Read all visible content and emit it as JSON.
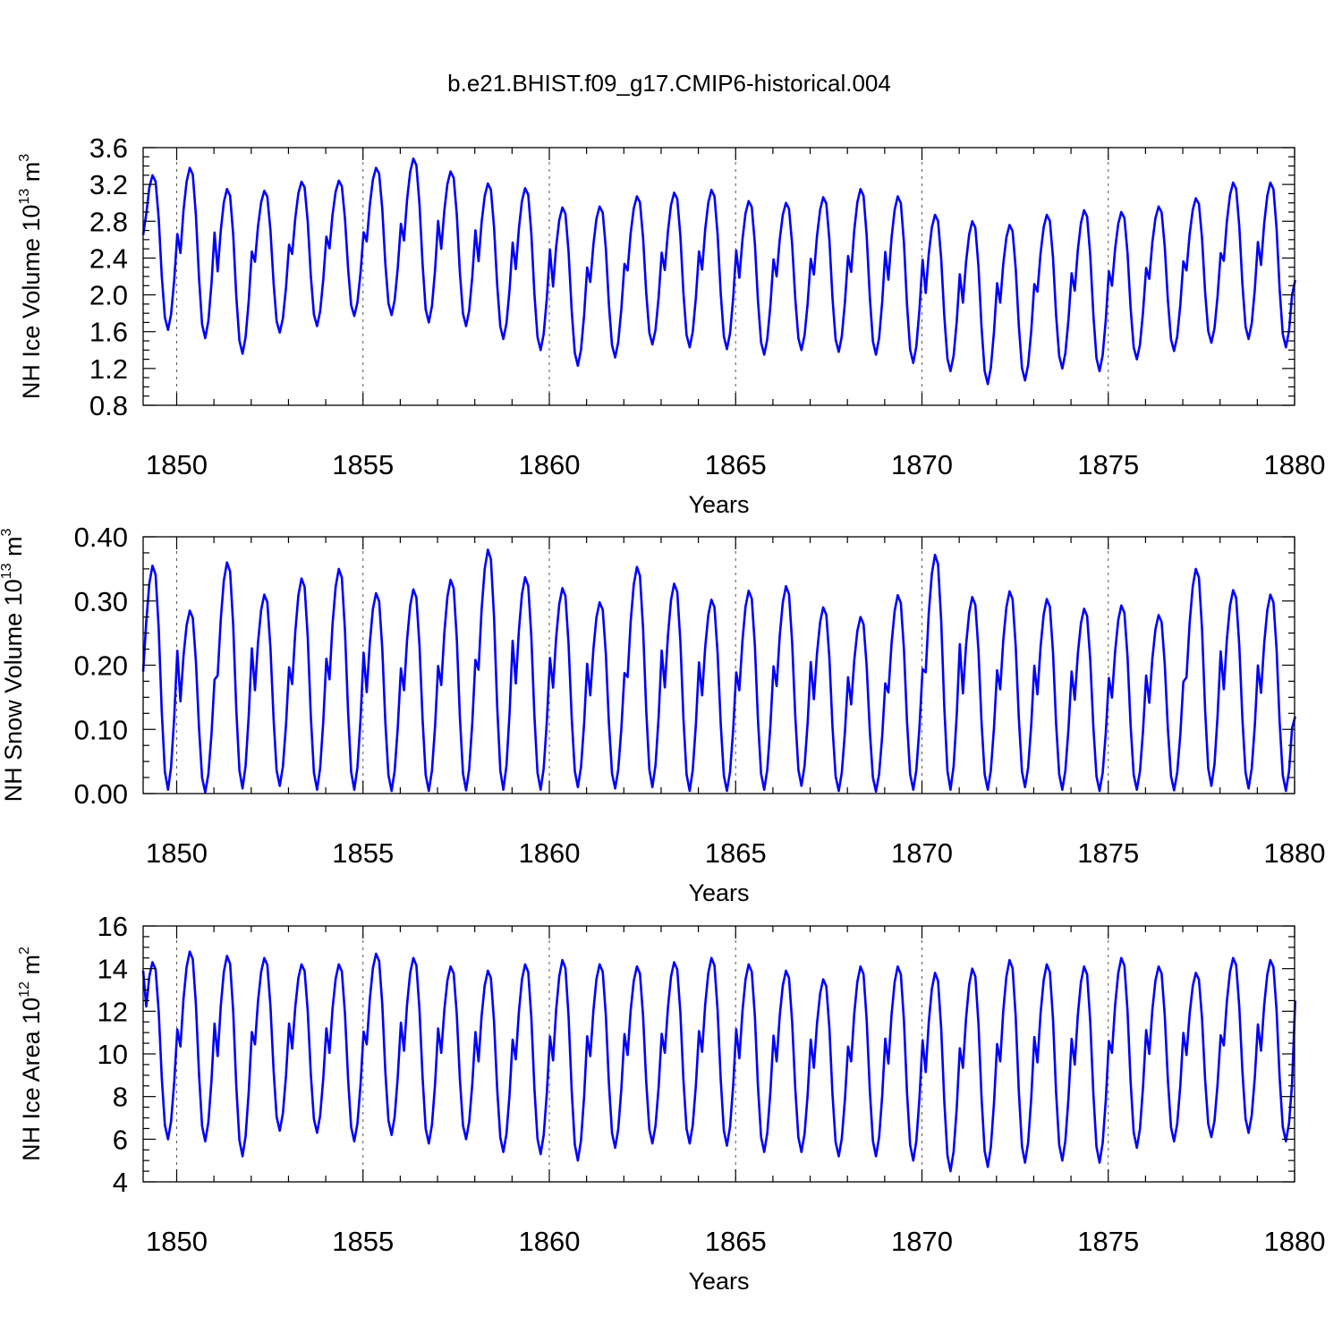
{
  "title": "b.e21.BHIST.f09_g17.CMIP6-historical.004",
  "line_color": "#0000ff",
  "chart_data": [
    {
      "type": "line",
      "xlabel": "Years",
      "ylabel": {
        "prefix": "NH Ice Volume 10",
        "exp": "13",
        "unit": " m",
        "unit_exp": "3"
      },
      "xlim": [
        1849.1,
        1880.0
      ],
      "ylim": [
        0.8,
        3.6
      ],
      "xticks": [
        1850,
        1855,
        1860,
        1865,
        1870,
        1875,
        1880
      ],
      "yticks": [
        0.8,
        1.2,
        1.6,
        2.0,
        2.4,
        2.8,
        3.2,
        3.6
      ],
      "ytick_labels": [
        "0.8",
        "1.2",
        "1.6",
        "2.0",
        "2.4",
        "2.8",
        "3.2",
        "3.6"
      ],
      "x_start": 1849.1,
      "x_step": 0.0833333,
      "annual_max": [
        3.3,
        3.38,
        3.15,
        3.13,
        3.23,
        3.24,
        3.38,
        3.48,
        3.34,
        3.21,
        3.16,
        2.95,
        2.96,
        3.07,
        3.11,
        3.14,
        3.02,
        3.0,
        3.06,
        3.15,
        3.07,
        2.87,
        2.8,
        2.76,
        2.87,
        2.92,
        2.9,
        2.96,
        3.05,
        3.22,
        3.22
      ],
      "annual_min": [
        1.62,
        1.53,
        1.36,
        1.59,
        1.66,
        1.77,
        1.78,
        1.7,
        1.66,
        1.52,
        1.4,
        1.23,
        1.32,
        1.46,
        1.43,
        1.41,
        1.35,
        1.4,
        1.38,
        1.35,
        1.26,
        1.17,
        1.03,
        1.07,
        1.2,
        1.17,
        1.3,
        1.39,
        1.48,
        1.52,
        1.43
      ],
      "first_value": 2.65,
      "last_value": 2.16
    },
    {
      "type": "line",
      "xlabel": "Years",
      "ylabel": {
        "prefix": "NH Snow Volume 10",
        "exp": "13",
        "unit": " m",
        "unit_exp": "3"
      },
      "xlim": [
        1849.1,
        1880.0
      ],
      "ylim": [
        0.0,
        0.4
      ],
      "xticks": [
        1850,
        1855,
        1860,
        1865,
        1870,
        1875,
        1880
      ],
      "yticks": [
        0.0,
        0.1,
        0.2,
        0.3,
        0.4
      ],
      "ytick_labels": [
        "0.00",
        "0.10",
        "0.20",
        "0.30",
        "0.40"
      ],
      "x_start": 1849.1,
      "x_step": 0.0833333,
      "annual_max": [
        0.355,
        0.285,
        0.36,
        0.31,
        0.335,
        0.35,
        0.312,
        0.318,
        0.333,
        0.38,
        0.337,
        0.32,
        0.298,
        0.353,
        0.327,
        0.302,
        0.316,
        0.323,
        0.29,
        0.275,
        0.309,
        0.372,
        0.306,
        0.315,
        0.303,
        0.288,
        0.293,
        0.278,
        0.35,
        0.317,
        0.31
      ],
      "annual_min": [
        0.006,
        0.002,
        0.008,
        0.012,
        0.006,
        0.006,
        0.004,
        0.004,
        0.005,
        0.006,
        0.006,
        0.01,
        0.008,
        0.01,
        0.004,
        0.004,
        0.006,
        0.012,
        0.004,
        0.003,
        0.006,
        0.006,
        0.006,
        0.01,
        0.006,
        0.004,
        0.006,
        0.005,
        0.012,
        0.008,
        0.004
      ],
      "first_value": 0.19,
      "last_value": 0.12
    },
    {
      "type": "line",
      "xlabel": "Years",
      "ylabel": {
        "prefix": "NH Ice Area 10",
        "exp": "12",
        "unit": " m",
        "unit_exp": "2"
      },
      "xlim": [
        1849.1,
        1880.0
      ],
      "ylim": [
        4,
        16
      ],
      "xticks": [
        1850,
        1855,
        1860,
        1865,
        1870,
        1875,
        1880
      ],
      "yticks": [
        4,
        6,
        8,
        10,
        12,
        14,
        16
      ],
      "ytick_labels": [
        "4",
        "6",
        "8",
        "10",
        "12",
        "14",
        "16"
      ],
      "x_start": 1849.1,
      "x_step": 0.0833333,
      "annual_max": [
        14.3,
        14.8,
        14.6,
        14.5,
        14.2,
        14.2,
        14.7,
        14.5,
        14.1,
        13.9,
        14.2,
        14.4,
        14.2,
        14.1,
        14.3,
        14.5,
        14.2,
        13.9,
        13.5,
        14.1,
        14.1,
        13.8,
        14.0,
        14.4,
        14.2,
        14.1,
        14.5,
        14.1,
        13.8,
        14.5,
        14.4
      ],
      "annual_min": [
        6.0,
        5.9,
        5.2,
        6.4,
        6.3,
        5.9,
        6.2,
        5.8,
        6.0,
        5.4,
        5.3,
        5.0,
        5.6,
        5.8,
        5.8,
        5.7,
        5.4,
        5.4,
        5.2,
        5.2,
        5.0,
        4.5,
        4.7,
        4.9,
        5.0,
        4.9,
        5.6,
        5.9,
        6.1,
        6.3,
        5.9
      ],
      "first_value": 13.9,
      "last_value": 12.5
    }
  ]
}
